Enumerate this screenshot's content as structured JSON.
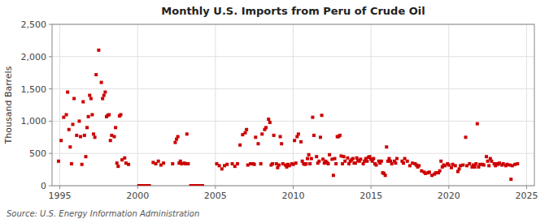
{
  "chart_data": {
    "type": "scatter",
    "title": "Monthly U.S. Imports from Peru of Crude Oil",
    "ylabel": "Thousand Barrels",
    "annotations": [
      "Source: U.S. Energy Information Administration"
    ],
    "color": "#cc0000",
    "marker": "square",
    "grid": true,
    "xlim": [
      1994.5,
      2025.5
    ],
    "ylim": [
      0,
      2500
    ],
    "xticks": [
      1995,
      2000,
      2005,
      2010,
      2015,
      2020,
      2025
    ],
    "yticks": [
      0,
      500,
      {
        "value": 1000,
        "label": "1,000"
      },
      {
        "value": 1500,
        "label": "1,500"
      },
      {
        "value": 2000,
        "label": "2,000"
      },
      {
        "value": 2500,
        "label": "2,500"
      }
    ],
    "x": [
      1994.917,
      1995.083,
      1995.25,
      1995.417,
      1995.5,
      1995.583,
      1995.667,
      1995.75,
      1995.833,
      1995.917,
      1996.083,
      1996.25,
      1996.333,
      1996.417,
      1996.5,
      1996.583,
      1996.667,
      1996.75,
      1996.833,
      1996.917,
      1997.0,
      1997.083,
      1997.167,
      1997.25,
      1997.333,
      1997.5,
      1997.667,
      1997.75,
      1997.833,
      1997.917,
      1998.0,
      1998.083,
      1998.167,
      1998.25,
      1998.333,
      1998.5,
      1998.583,
      1998.667,
      1998.75,
      1998.833,
      1998.917,
      1999.0,
      1999.167,
      1999.25,
      1999.417,
      2000.083,
      2000.25,
      2000.417,
      2000.5,
      2000.583,
      2000.667,
      2000.75,
      2001.0,
      2001.167,
      2001.333,
      2001.5,
      2001.667,
      2002.25,
      2002.417,
      2002.5,
      2002.583,
      2002.667,
      2002.75,
      2002.833,
      2003.0,
      2003.083,
      2003.167,
      2003.25,
      2003.417,
      2003.5,
      2003.583,
      2003.667,
      2003.75,
      2003.833,
      2003.917,
      2004.0,
      2004.083,
      2004.167,
      2005.083,
      2005.25,
      2005.417,
      2005.583,
      2005.75,
      2006.083,
      2006.25,
      2006.417,
      2006.583,
      2006.75,
      2006.917,
      2007.0,
      2007.083,
      2007.25,
      2007.417,
      2007.5,
      2007.583,
      2007.75,
      2007.917,
      2008.0,
      2008.167,
      2008.25,
      2008.417,
      2008.5,
      2008.583,
      2008.667,
      2008.75,
      2008.917,
      2009.0,
      2009.083,
      2009.167,
      2009.25,
      2009.333,
      2009.5,
      2009.583,
      2009.667,
      2009.75,
      2009.917,
      2010.0,
      2010.083,
      2010.167,
      2010.25,
      2010.333,
      2010.5,
      2010.583,
      2010.667,
      2010.75,
      2010.833,
      2010.917,
      2011.0,
      2011.083,
      2011.167,
      2011.25,
      2011.333,
      2011.5,
      2011.583,
      2011.667,
      2011.75,
      2011.833,
      2011.917,
      2012.0,
      2012.083,
      2012.167,
      2012.25,
      2012.333,
      2012.5,
      2012.583,
      2012.667,
      2012.75,
      2012.833,
      2012.917,
      2013.0,
      2013.083,
      2013.167,
      2013.25,
      2013.333,
      2013.5,
      2013.583,
      2013.667,
      2013.75,
      2013.833,
      2013.917,
      2014.0,
      2014.083,
      2014.167,
      2014.25,
      2014.333,
      2014.5,
      2014.583,
      2014.667,
      2014.75,
      2014.833,
      2014.917,
      2015.0,
      2015.083,
      2015.167,
      2015.25,
      2015.333,
      2015.5,
      2015.583,
      2015.667,
      2015.75,
      2015.833,
      2015.917,
      2016.0,
      2016.083,
      2016.167,
      2016.25,
      2016.333,
      2016.5,
      2016.583,
      2016.667,
      2017.0,
      2017.083,
      2017.167,
      2017.333,
      2017.5,
      2017.667,
      2017.833,
      2017.917,
      2018.0,
      2018.083,
      2018.25,
      2018.417,
      2018.5,
      2018.667,
      2018.75,
      2018.917,
      2019.083,
      2019.167,
      2019.333,
      2019.417,
      2019.5,
      2019.583,
      2019.667,
      2019.75,
      2019.917,
      2020.0,
      2020.167,
      2020.25,
      2020.417,
      2020.583,
      2020.667,
      2020.75,
      2020.917,
      2021.083,
      2021.167,
      2021.333,
      2021.5,
      2021.583,
      2021.667,
      2021.75,
      2021.833,
      2021.917,
      2022.0,
      2022.167,
      2022.25,
      2022.417,
      2022.5,
      2022.583,
      2022.667,
      2022.75,
      2022.917,
      2023.0,
      2023.083,
      2023.167,
      2023.25,
      2023.417,
      2023.5,
      2023.667,
      2023.75,
      2023.917,
      2024.0,
      2024.083,
      2024.25,
      2024.417
    ],
    "values": [
      380,
      700,
      1060,
      1100,
      1450,
      870,
      600,
      340,
      950,
      1350,
      780,
      1000,
      760,
      330,
      1300,
      780,
      450,
      900,
      1070,
      1400,
      1350,
      1100,
      800,
      750,
      1720,
      2100,
      1600,
      1350,
      1400,
      1450,
      1070,
      1090,
      1100,
      700,
      780,
      760,
      900,
      350,
      300,
      1080,
      1100,
      400,
      430,
      350,
      330,
      0,
      0,
      0,
      0,
      0,
      0,
      0,
      360,
      340,
      380,
      320,
      350,
      340,
      670,
      720,
      760,
      350,
      380,
      340,
      350,
      340,
      800,
      340,
      0,
      0,
      0,
      0,
      0,
      0,
      0,
      0,
      0,
      0,
      340,
      310,
      260,
      310,
      330,
      340,
      300,
      340,
      630,
      790,
      820,
      870,
      320,
      340,
      340,
      330,
      750,
      650,
      340,
      800,
      870,
      900,
      1030,
      980,
      320,
      340,
      780,
      340,
      280,
      320,
      760,
      650,
      340,
      320,
      290,
      330,
      310,
      340,
      330,
      700,
      350,
      760,
      800,
      680,
      380,
      340,
      330,
      340,
      420,
      480,
      340,
      420,
      1060,
      780,
      450,
      350,
      380,
      750,
      1090,
      410,
      350,
      380,
      360,
      340,
      480,
      410,
      160,
      420,
      340,
      760,
      760,
      780,
      460,
      340,
      450,
      380,
      430,
      340,
      380,
      400,
      420,
      350,
      350,
      430,
      390,
      380,
      410,
      340,
      380,
      420,
      380,
      440,
      450,
      410,
      380,
      420,
      340,
      320,
      380,
      350,
      380,
      200,
      190,
      160,
      600,
      380,
      420,
      380,
      340,
      380,
      350,
      420,
      380,
      350,
      420,
      380,
      310,
      350,
      340,
      320,
      290,
      310,
      230,
      210,
      190,
      200,
      210,
      160,
      180,
      200,
      200,
      230,
      380,
      290,
      320,
      310,
      340,
      320,
      280,
      330,
      310,
      220,
      260,
      310,
      320,
      750,
      310,
      340,
      290,
      320,
      290,
      340,
      960,
      290,
      330,
      330,
      320,
      450,
      380,
      310,
      420,
      380,
      340,
      310,
      340,
      330,
      350,
      320,
      340,
      310,
      330,
      320,
      100,
      310,
      330,
      340
    ]
  }
}
